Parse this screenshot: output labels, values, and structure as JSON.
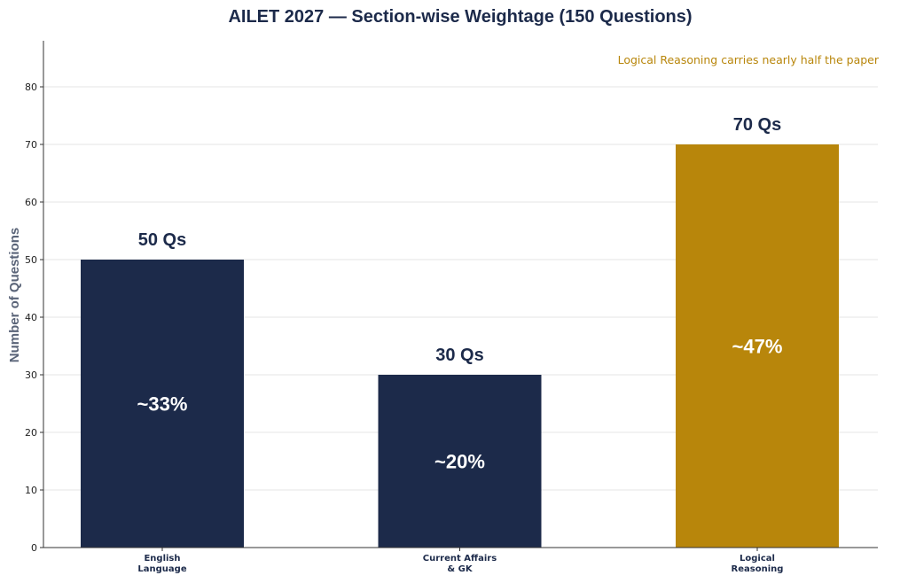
{
  "chart_data": {
    "type": "bar",
    "title": "AILET 2027 — Section-wise Weightage (150 Questions)",
    "ylabel": "Number of Questions",
    "xlabel": "",
    "ylim": [
      0,
      88
    ],
    "yticks": [
      0,
      10,
      20,
      30,
      40,
      50,
      60,
      70,
      80
    ],
    "grid": true,
    "categories": [
      [
        "English",
        "Language"
      ],
      [
        "Current Affairs",
        "& GK"
      ],
      [
        "Logical",
        "Reasoning"
      ]
    ],
    "values": [
      50,
      30,
      70
    ],
    "value_labels": [
      "50 Qs",
      "30 Qs",
      "70 Qs"
    ],
    "percent_labels": [
      "~33%",
      "~20%",
      "~47%"
    ],
    "bar_colors": [
      "#1c2a4a",
      "#1c2a4a",
      "#b8860b"
    ],
    "annotation": {
      "text": "Logical Reasoning carries nearly half the paper",
      "color": "#b8860b"
    }
  }
}
